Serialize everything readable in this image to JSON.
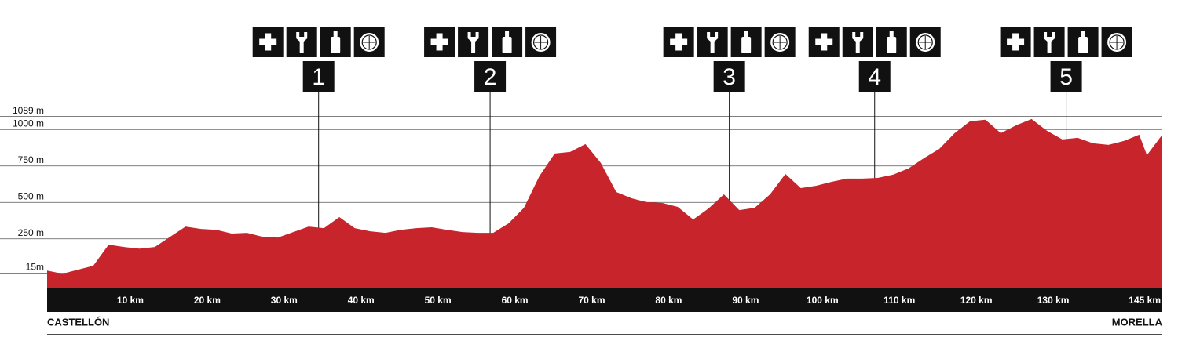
{
  "chart_data": {
    "type": "area",
    "color": "#c8242b",
    "x": [
      0,
      2,
      4,
      6,
      8,
      10,
      12,
      14,
      16,
      18,
      20,
      22,
      24,
      26,
      28,
      30,
      32,
      34,
      36,
      38,
      40,
      42,
      44,
      46,
      48,
      50,
      52,
      54,
      56,
      58,
      60,
      62,
      64,
      66,
      68,
      70,
      72,
      74,
      76,
      78,
      80,
      82,
      84,
      86,
      88,
      90,
      92,
      94,
      96,
      98,
      100,
      102,
      104,
      106,
      108,
      110,
      112,
      114,
      116,
      118,
      120,
      122,
      124,
      126,
      128,
      130,
      132,
      134,
      136,
      138,
      140,
      142,
      143,
      145
    ],
    "values": [
      32,
      11,
      38,
      65,
      210,
      194,
      183,
      194,
      264,
      334,
      318,
      312,
      286,
      291,
      264,
      259,
      296,
      334,
      323,
      399,
      323,
      302,
      291,
      312,
      323,
      329,
      312,
      296,
      291,
      291,
      356,
      463,
      679,
      835,
      846,
      900,
      770,
      571,
      528,
      501,
      496,
      469,
      383,
      458,
      555,
      447,
      463,
      555,
      695,
      598,
      614,
      641,
      663,
      663,
      668,
      690,
      733,
      803,
      867,
      975,
      1056,
      1067,
      975,
      1029,
      1072,
      991,
      932,
      943,
      905,
      894,
      921,
      964,
      824,
      964
    ],
    "xlim": [
      0,
      145
    ],
    "ylim": [
      -90,
      1200
    ],
    "yticks": [
      {
        "value": 15,
        "label": "15m"
      },
      {
        "value": 250,
        "label": "250 m"
      },
      {
        "value": 500,
        "label": "500 m"
      },
      {
        "value": 750,
        "label": "750 m"
      },
      {
        "value": 1000,
        "label": "1000 m"
      },
      {
        "value": 1089,
        "label": "1089 m"
      }
    ],
    "xticks": [
      {
        "value": 10,
        "label": "10 km"
      },
      {
        "value": 20,
        "label": "20 km"
      },
      {
        "value": 30,
        "label": "30 km"
      },
      {
        "value": 40,
        "label": "40 km"
      },
      {
        "value": 50,
        "label": "50 km"
      },
      {
        "value": 60,
        "label": "60 km"
      },
      {
        "value": 70,
        "label": "70 km"
      },
      {
        "value": 80,
        "label": "80 km"
      },
      {
        "value": 90,
        "label": "90 km"
      },
      {
        "value": 100,
        "label": "100 km"
      },
      {
        "value": 110,
        "label": "110 km"
      },
      {
        "value": 120,
        "label": "120 km"
      },
      {
        "value": 130,
        "label": "130 km"
      },
      {
        "value": 145,
        "label": "145 km"
      }
    ],
    "start": "CASTELLÓN",
    "end": "MORELLA",
    "stations": [
      {
        "km": 35.3,
        "label": "1"
      },
      {
        "km": 57.6,
        "label": "2"
      },
      {
        "km": 88.7,
        "label": "3"
      },
      {
        "km": 107.6,
        "label": "4"
      },
      {
        "km": 132.5,
        "label": "5"
      }
    ]
  }
}
